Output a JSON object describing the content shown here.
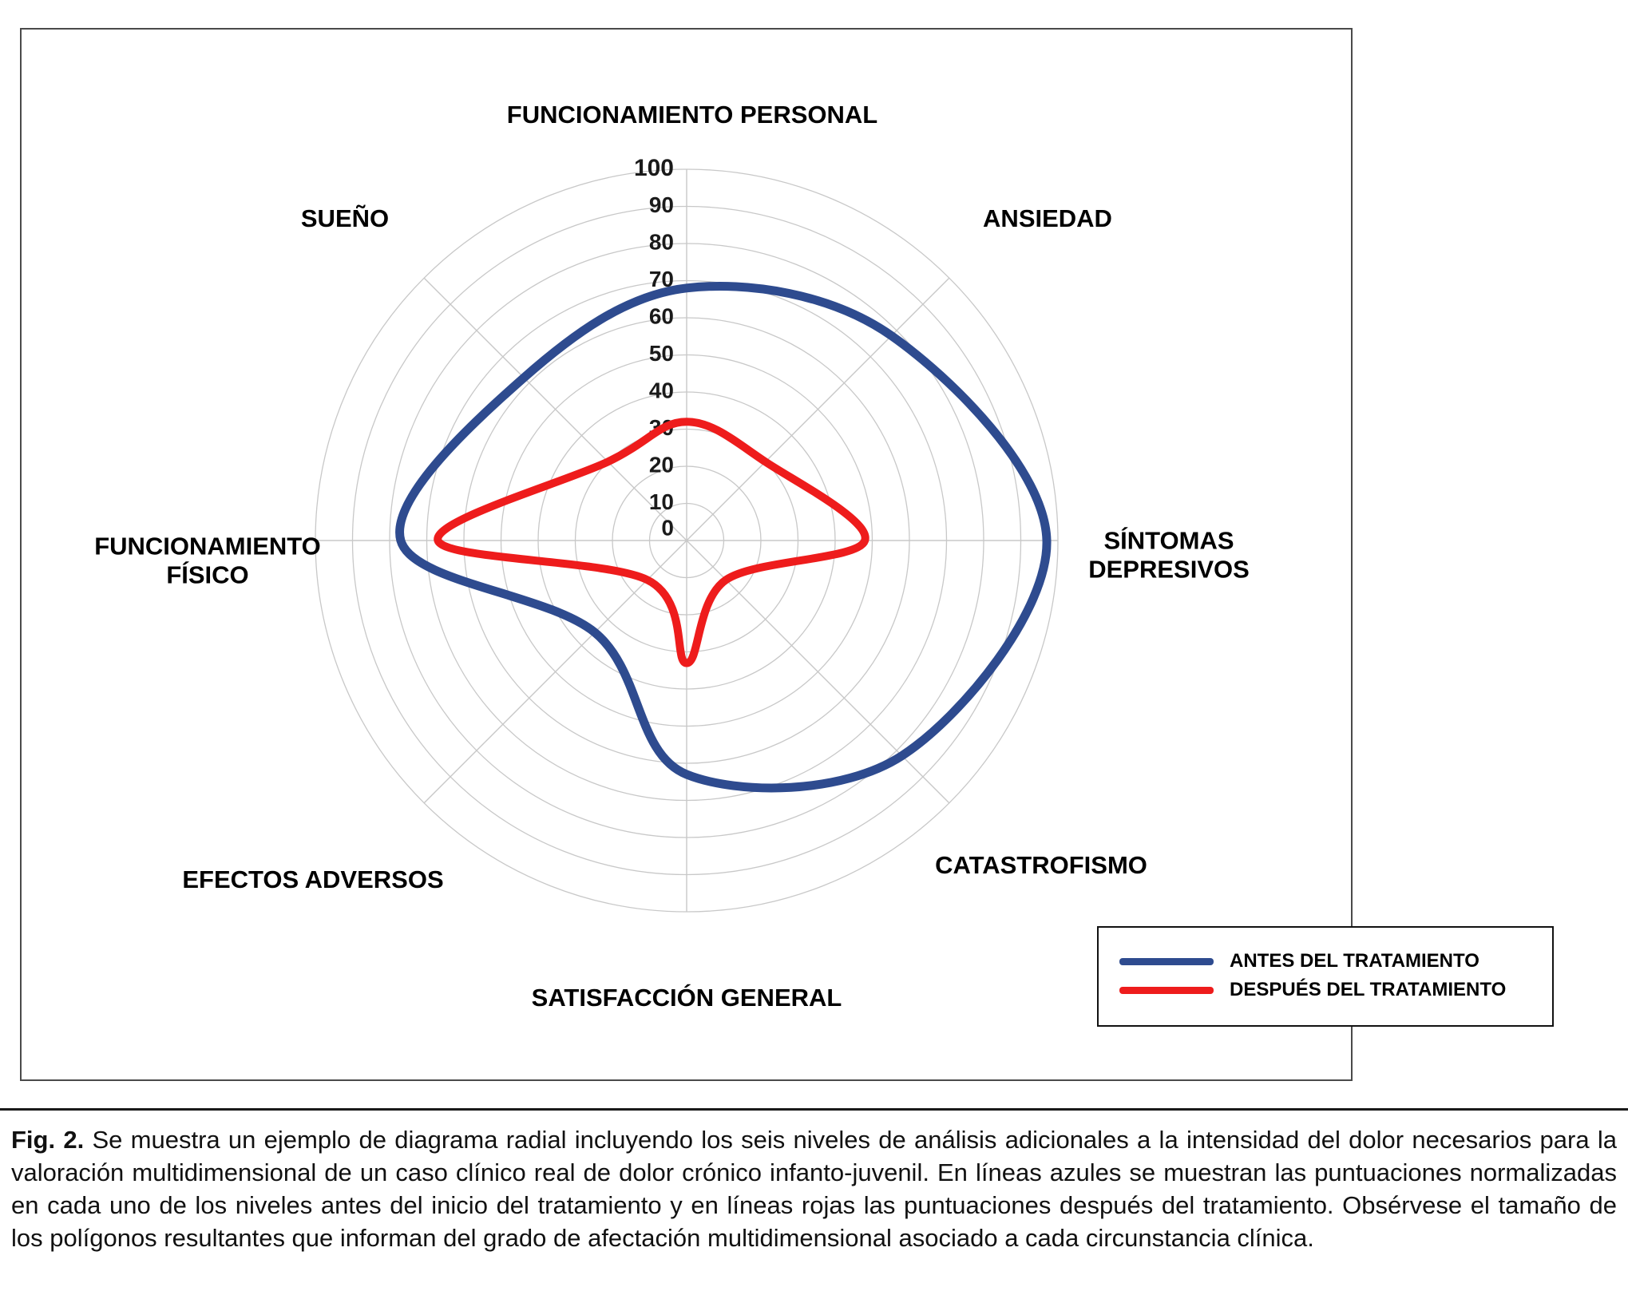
{
  "chart_data": {
    "type": "radar",
    "categories": [
      "FUNCIONAMIENTO PERSONAL",
      "ANSIEDAD",
      "SÍNTOMAS DEPRESIVOS",
      "CATASTROFISMO",
      "SATISFACCIÓN GENERAL",
      "EFECTOS ADVERSOS",
      "FUNCIONAMIENTO FÍSICO",
      "SUEÑO"
    ],
    "series": [
      {
        "name": "ANTES DEL TRATAMIENTO",
        "color": "#2E4B8F",
        "values": [
          68,
          78,
          97,
          82,
          63,
          35,
          77,
          62
        ]
      },
      {
        "name": "DESPUÉS DEL TRATAMIENTO",
        "color": "#EE1C1C",
        "values": [
          32,
          30,
          48,
          15,
          33,
          15,
          67,
          30
        ]
      }
    ],
    "radial_ticks": [
      0,
      10,
      20,
      30,
      40,
      50,
      60,
      70,
      80,
      90,
      100
    ],
    "rmax": 100,
    "grid": true,
    "legend_position": "bottom-right",
    "colors": {
      "grid": "#c8c8c8",
      "tick_text": "#1a1a1a"
    }
  },
  "caption": {
    "fig_label": "Fig. 2.",
    "text": "Se muestra un ejemplo de diagrama radial incluyendo los seis niveles de análisis adicionales a la intensidad del dolor necesarios para la valoración multidimensional de un caso clínico real de dolor crónico infanto-juvenil. En líneas azules se muestran las puntuaciones normalizadas en cada uno de los niveles antes del inicio del tratamiento y en líneas rojas las puntuaciones después del tratamiento. Obsérvese el tamaño de los polígonos resultantes que informan del grado de afectación multidimensional asociado a cada circunstancia clínica."
  }
}
